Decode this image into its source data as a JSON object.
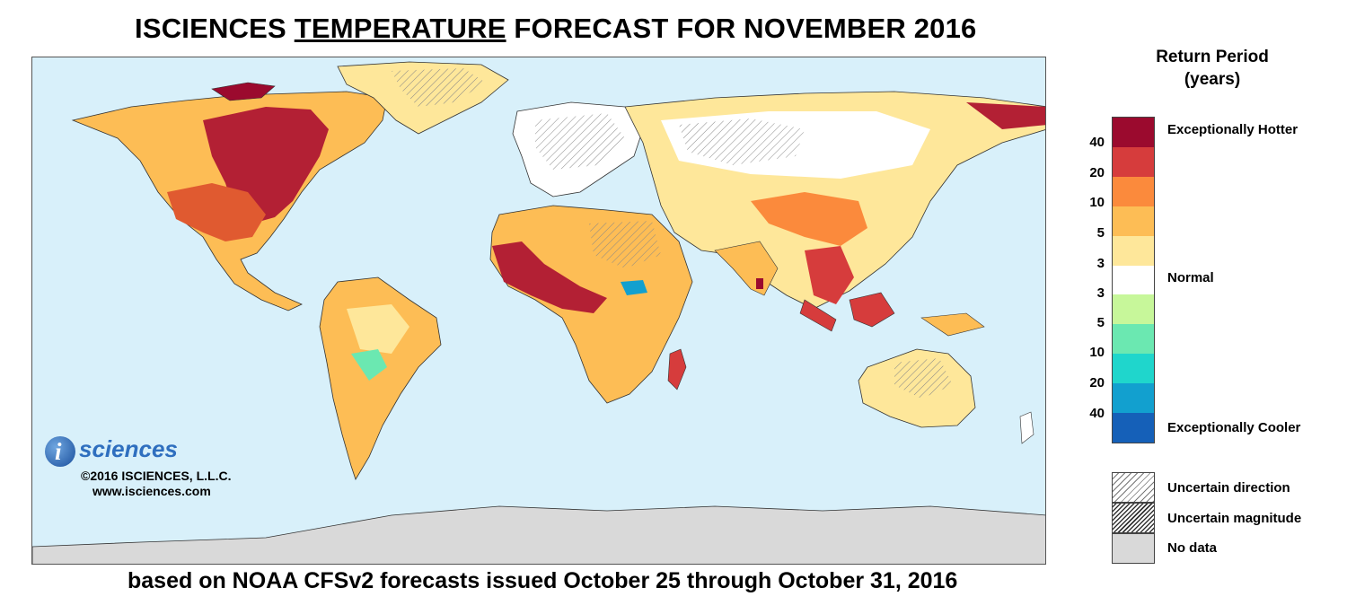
{
  "title": {
    "part1": "ISCIENCES",
    "part2": "TEMPERATURE",
    "part3": "FORECAST FOR NOVEMBER 2016"
  },
  "subtitle": "based on NOAA CFSv2 forecasts issued October 25 through October 31, 2016",
  "logo": {
    "letter": "i",
    "word": "sciences"
  },
  "copyright": "©2016 ISCIENCES, L.L.C.",
  "website": "www.isciences.com",
  "legend": {
    "title_line1": "Return Period",
    "title_line2": "(years)",
    "hotter_label": "Exceptionally Hotter",
    "normal_label": "Normal",
    "cooler_label": "Exceptionally Cooler",
    "ticks": [
      "40",
      "20",
      "10",
      "5",
      "3",
      "3",
      "5",
      "10",
      "20",
      "40"
    ],
    "colors": [
      "#9b0a2e",
      "#d63c3c",
      "#fb8a3c",
      "#fdbd55",
      "#fee79a",
      "#ffffff",
      "#c7f79a",
      "#6be8b1",
      "#1fd6cc",
      "#12a0cf",
      "#1560b8"
    ],
    "uncertain_direction": "Uncertain direction",
    "uncertain_magnitude": "Uncertain magnitude",
    "no_data": "No data"
  },
  "map": {
    "ocean_color": "#d8f0fa",
    "land_border_color": "#333333",
    "no_data_color": "#d9d9d9"
  }
}
